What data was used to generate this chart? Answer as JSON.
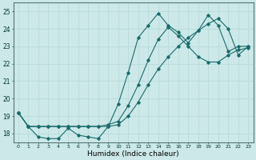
{
  "xlabel": "Humidex (Indice chaleur)",
  "background_color": "#cce8e8",
  "grid_color": "#bbdddd",
  "line_color": "#1a6b6b",
  "xlim": [
    -0.5,
    23.5
  ],
  "ylim": [
    17.5,
    25.5
  ],
  "xticks": [
    0,
    1,
    2,
    3,
    4,
    5,
    6,
    7,
    8,
    9,
    10,
    11,
    12,
    13,
    14,
    15,
    16,
    17,
    18,
    19,
    20,
    21,
    22,
    23
  ],
  "yticks": [
    18,
    19,
    20,
    21,
    22,
    23,
    24,
    25
  ],
  "line1_x": [
    0,
    1,
    2,
    3,
    4,
    5,
    6,
    7,
    8,
    9,
    10,
    11,
    12,
    13,
    14,
    15,
    16,
    17,
    18,
    19,
    20,
    21,
    22,
    23
  ],
  "line1_y": [
    19.2,
    18.4,
    17.8,
    17.7,
    17.7,
    18.3,
    17.9,
    17.8,
    17.7,
    18.4,
    19.7,
    21.5,
    23.5,
    24.2,
    24.9,
    24.2,
    23.8,
    23.2,
    23.9,
    24.8,
    24.2,
    22.7,
    23.0,
    23.0
  ],
  "line2_x": [
    0,
    1,
    2,
    3,
    4,
    5,
    6,
    7,
    8,
    9,
    10,
    11,
    12,
    13,
    14,
    15,
    16,
    17,
    18,
    19,
    20,
    21,
    22,
    23
  ],
  "line2_y": [
    19.2,
    18.4,
    18.4,
    18.4,
    18.4,
    18.4,
    18.4,
    18.4,
    18.4,
    18.5,
    18.7,
    19.6,
    20.8,
    22.2,
    23.4,
    24.1,
    23.6,
    23.0,
    22.4,
    22.1,
    22.1,
    22.5,
    22.8,
    22.9
  ],
  "line3_x": [
    0,
    1,
    2,
    3,
    4,
    5,
    6,
    7,
    8,
    9,
    10,
    11,
    12,
    13,
    14,
    15,
    16,
    17,
    18,
    19,
    20,
    21,
    22,
    23
  ],
  "line3_y": [
    19.2,
    18.4,
    18.4,
    18.4,
    18.4,
    18.4,
    18.4,
    18.4,
    18.4,
    18.4,
    18.5,
    19.0,
    19.8,
    20.8,
    21.7,
    22.4,
    23.0,
    23.5,
    23.9,
    24.3,
    24.6,
    24.0,
    22.5,
    23.0
  ]
}
